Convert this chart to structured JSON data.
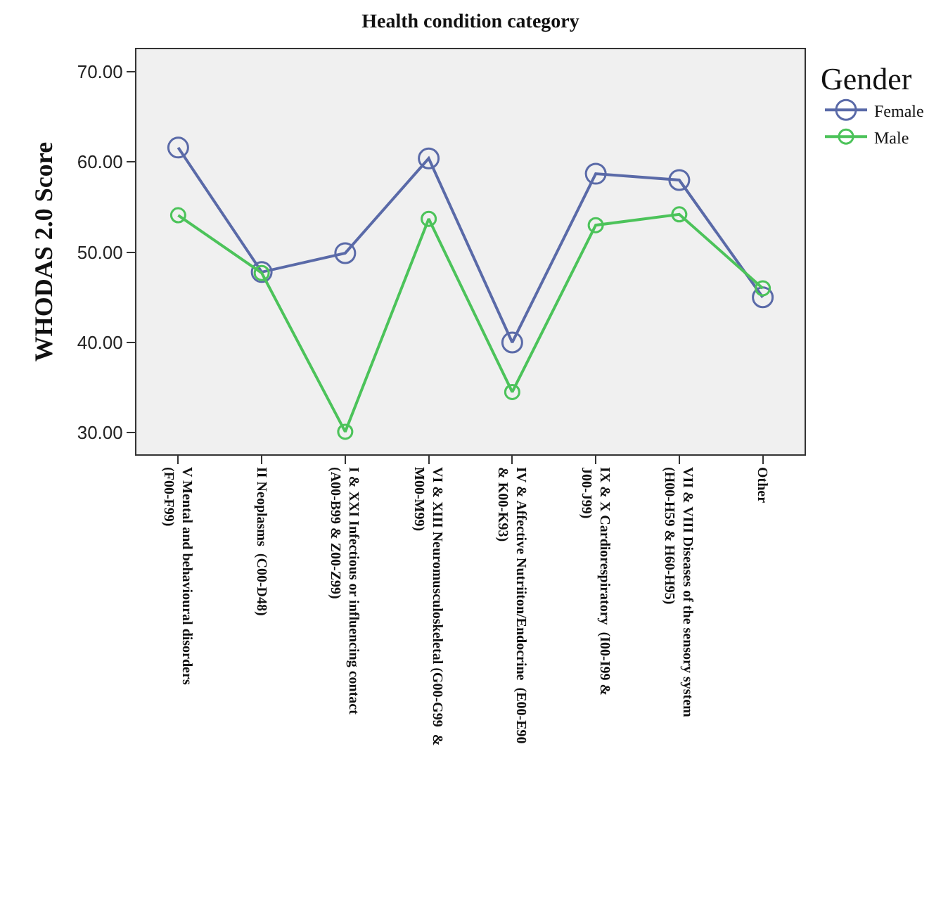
{
  "chart_data": {
    "type": "line",
    "title": "Health condition category",
    "ylabel": "WHODAS 2.0 Score",
    "legend_title": "Gender",
    "categories": [
      "V Mental and behavioural disorders  (F00-F99)",
      "II Neoplasms  (C00-D48)",
      "I & XXI Infectious or influencing contact  (A00-B99 & Z00-Z99)",
      "VI & XIII Neuromusculoskeletal (G00-G99  & M00-M99)",
      "IV & Affective Nutriiton/Endocrine  (E00-E90  & K00-K93)",
      "IX & X Cardiorespiratory  (I00-I99 & J00-J99)",
      "VII & VIII Diseases of the sensory system (H00-H59 & H60-H95)",
      "Other"
    ],
    "series": [
      {
        "name": "Female",
        "color": "#5a6aa8",
        "values": [
          61.6,
          47.8,
          49.9,
          60.4,
          40.0,
          58.7,
          58.0,
          45.0
        ]
      },
      {
        "name": "Male",
        "color": "#4cc35a",
        "values": [
          54.1,
          47.7,
          30.1,
          53.7,
          34.5,
          53.0,
          54.2,
          46.0
        ]
      }
    ],
    "ylim": [
      27.6,
      72.5
    ],
    "yticks": [
      {
        "value": 30,
        "label": "30.00"
      },
      {
        "value": 40,
        "label": "40.00"
      },
      {
        "value": 50,
        "label": "50.00"
      },
      {
        "value": 60,
        "label": "60.00"
      },
      {
        "value": 70,
        "label": "70.00"
      }
    ],
    "grid": false,
    "legend": "right",
    "marker": "circle",
    "line_style": "solid"
  }
}
